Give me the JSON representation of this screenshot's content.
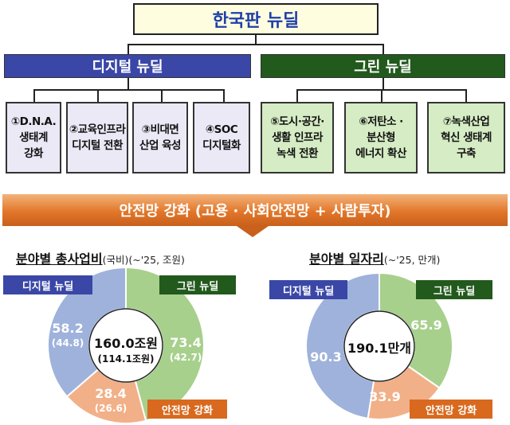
{
  "title": "한국판 뉴딜",
  "digital": {
    "label": "디지털 뉴딜",
    "items": [
      {
        "lines": [
          "①D.N.A.",
          "생태계",
          "강화"
        ]
      },
      {
        "lines": [
          "②교육인프라",
          "디지털 전환"
        ]
      },
      {
        "lines": [
          "③비대면",
          "산업 육성"
        ]
      },
      {
        "lines": [
          "④SOC",
          "디지털화"
        ]
      }
    ]
  },
  "green": {
    "label": "그린 뉴딜",
    "items": [
      {
        "lines": [
          "⑤도시·공간·",
          "생활 인프라",
          "녹색 전환"
        ]
      },
      {
        "lines": [
          "⑥저탄소 ·",
          "분산형",
          "에너지 확산"
        ]
      },
      {
        "lines": [
          "⑦녹색산업",
          "혁신 생태계",
          "구축"
        ]
      }
    ]
  },
  "safety": {
    "label": "안전망 강화 (고용 · 사회안전망 + 사람투자)"
  },
  "colors": {
    "digital": "#9fb2db",
    "green": "#a7d08c",
    "safety": "#f2b088",
    "digital_tag": "#3a47a6",
    "green_tag": "#22591c",
    "safety_tag": "#d8691e"
  },
  "chart_data": [
    {
      "type": "pie",
      "title": "분야별 총사업비",
      "unit_note": "(국비)(~'25, 조원)",
      "center_label": "160.0조원",
      "center_sub": "(114.1조원)",
      "categories": [
        "디지털 뉴딜",
        "그린 뉴딜",
        "안전망 강화"
      ],
      "values": [
        58.2,
        73.4,
        28.4
      ],
      "sub_values": [
        "(44.8)",
        "(42.7)",
        "(26.6)"
      ],
      "value_labels": [
        "58.2",
        "73.4",
        "28.4"
      ]
    },
    {
      "type": "pie",
      "title": "분야별 일자리",
      "unit_note": "(~'25, 만개)",
      "center_label": "190.1만개",
      "categories": [
        "디지털 뉴딜",
        "그린 뉴딜",
        "안전망 강화"
      ],
      "values": [
        90.3,
        65.9,
        33.9
      ],
      "value_labels": [
        "90.3",
        "65.9",
        "33.9"
      ]
    }
  ]
}
